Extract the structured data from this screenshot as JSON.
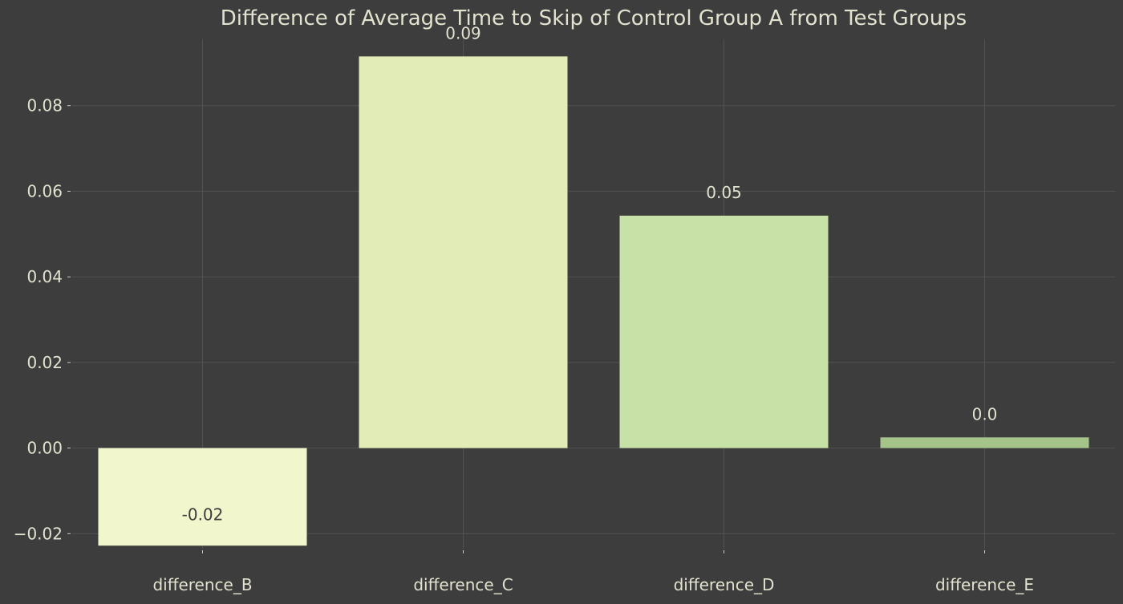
{
  "chart_data": {
    "type": "bar",
    "title": "Difference of Average Time to Skip of Control Group A from Test Groups",
    "xlabel": "",
    "ylabel": "",
    "categories": [
      "difference_B",
      "difference_C",
      "difference_D",
      "difference_E"
    ],
    "values": [
      -0.0228,
      0.0915,
      0.0543,
      0.0025
    ],
    "data_labels": [
      "-0.02",
      "0.09",
      "0.05",
      "0.0"
    ],
    "ylim": [
      -0.0235,
      0.0955
    ],
    "yticks": [
      -0.02,
      0.0,
      0.02,
      0.04,
      0.06,
      0.08
    ],
    "ytick_labels": [
      "−0.02",
      "0.00",
      "0.02",
      "0.04",
      "0.06",
      "0.08"
    ],
    "grid": true,
    "legend": "none",
    "colors": {
      "background": "#3d3d3d",
      "text": "#e2e2cf",
      "grid": "#525252",
      "tick": "#c8c8c8",
      "bars": [
        "#f1f6cc",
        "#e1ecb7",
        "#c8e1a6",
        "#a4c48a"
      ],
      "inside_label": "#3d3d3d"
    }
  }
}
